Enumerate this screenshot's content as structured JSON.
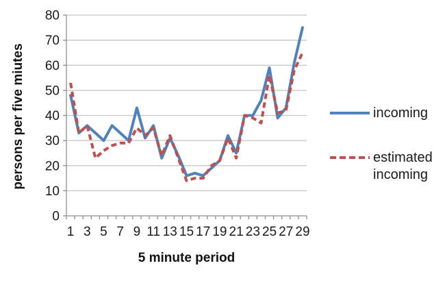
{
  "chart_data": {
    "type": "line",
    "title": "",
    "xlabel": "5 minute period",
    "ylabel": "persons per five miutes",
    "x": [
      1,
      2,
      3,
      4,
      5,
      6,
      7,
      8,
      9,
      10,
      11,
      12,
      13,
      14,
      15,
      16,
      17,
      18,
      19,
      20,
      21,
      22,
      23,
      24,
      25,
      26,
      27,
      28,
      29
    ],
    "x_tick_labels": [
      "1",
      "3",
      "5",
      "7",
      "9",
      "11",
      "13",
      "15",
      "17",
      "19",
      "21",
      "23",
      "25",
      "27",
      "29"
    ],
    "y_ticks": [
      "0",
      "10",
      "20",
      "30",
      "40",
      "50",
      "60",
      "70",
      "80"
    ],
    "ylim": [
      0,
      80
    ],
    "xlim_categories": 29,
    "grid": "horizontal",
    "legend_position": "right",
    "series": [
      {
        "name": "incoming",
        "style": "solid",
        "color": "#4F81BD",
        "values": [
          48,
          33,
          36,
          33,
          30,
          36,
          33,
          30,
          43,
          31,
          36,
          23,
          31,
          24,
          16,
          17,
          16,
          19,
          22,
          32,
          25,
          40,
          40,
          46,
          59,
          39,
          43,
          61,
          75
        ]
      },
      {
        "name": "estimated incoming",
        "style": "dashed",
        "color": "#C0504D",
        "values": [
          53,
          33,
          36,
          23,
          26,
          28,
          29,
          29,
          35,
          32,
          35,
          24,
          32,
          23,
          14,
          15,
          15,
          20,
          22,
          31,
          23,
          40,
          39,
          37,
          56,
          41,
          42,
          58,
          65
        ]
      }
    ]
  },
  "colors": {
    "series_incoming": "#4F81BD",
    "series_estimated_incoming": "#C0504D",
    "gridline": "#C3C3C3",
    "axis": "#8C8C8C",
    "tick_text": "#1a1a1a",
    "background": "#ffffff"
  }
}
